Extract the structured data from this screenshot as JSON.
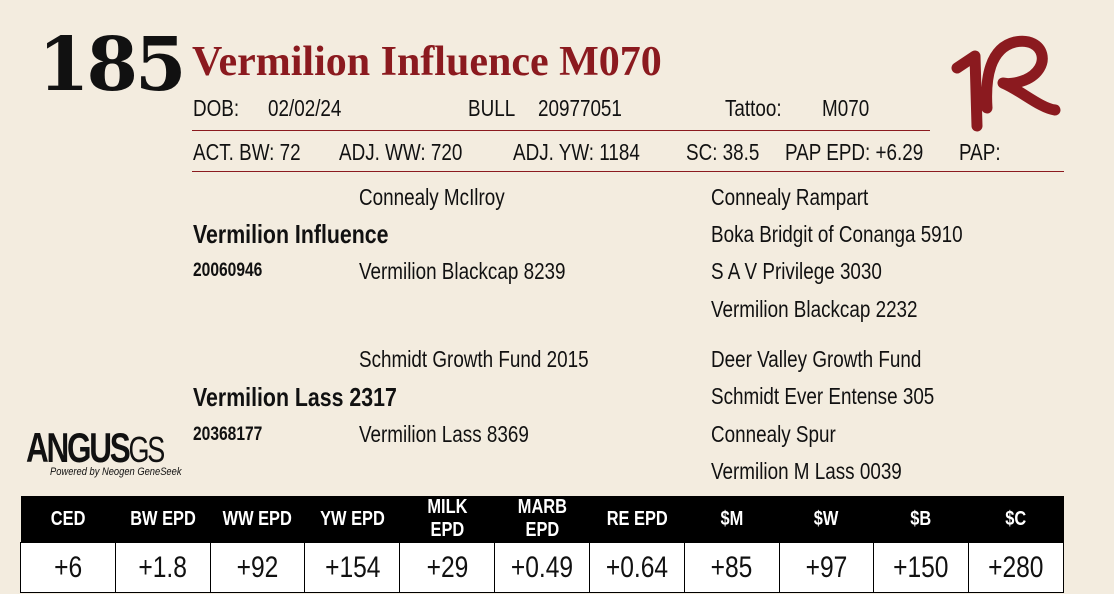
{
  "lot": "185",
  "name": "Vermilion Influence M070",
  "dob_label": "DOB:",
  "dob": "02/02/24",
  "sex": "BULL",
  "reg": "20977051",
  "tattoo_label": "Tattoo:",
  "tattoo": "M070",
  "stats": {
    "act_bw": "ACT. BW: 72",
    "adj_ww": "ADJ. WW: 720",
    "adj_yw": "ADJ. YW: 1184",
    "sc": "SC: 38.5",
    "pap_epd": "PAP EPD: +6.29",
    "pap": "PAP:"
  },
  "pedigree": {
    "sire": "Vermilion Influence",
    "sire_reg": "20060946",
    "sire_sire": "Connealy McIlroy",
    "sire_dam": "Vermilion Blackcap 8239",
    "sss": "Connealy Rampart",
    "ssd": "Boka Bridgit of Conanga 5910",
    "sds": "S A V Privilege 3030",
    "sdd": "Vermilion Blackcap 2232",
    "dam": "Vermilion Lass 2317",
    "dam_reg": "20368177",
    "dam_sire": "Schmidt Growth Fund 2015",
    "dam_dam": "Vermilion Lass 8369",
    "dss": "Deer Valley Growth Fund",
    "dsd": "Schmidt Ever Entense 305",
    "dds": "Connealy Spur",
    "ddd": "Vermilion M Lass 0039"
  },
  "logo": {
    "main": "ANGUS",
    "suffix": "GS",
    "tagline": "Powered by Neogen GeneSeek"
  },
  "brand": "1R",
  "epd": {
    "headers": [
      "CED",
      "BW EPD",
      "WW EPD",
      "YW EPD",
      "MILK EPD",
      "MARB EPD",
      "RE EPD",
      "$M",
      "$W",
      "$B",
      "$C"
    ],
    "values": [
      "+6",
      "+1.8",
      "+92",
      "+154",
      "+29",
      "+0.49",
      "+0.64",
      "+85",
      "+97",
      "+150",
      "+280"
    ]
  },
  "colors": {
    "accent": "#8b1a1f",
    "background": "#f3ecdf"
  }
}
